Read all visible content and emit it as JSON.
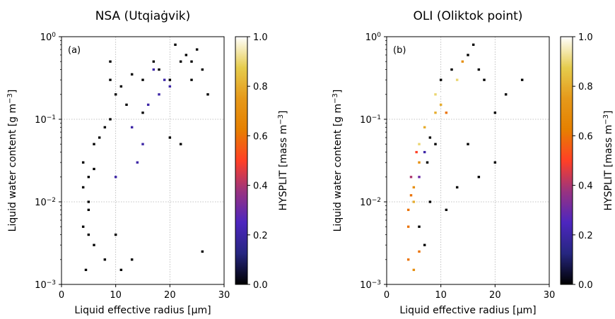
{
  "chart_data": [
    {
      "type": "heatmap",
      "title": "NSA (Utqiaġvik)",
      "panel_label": "(a)",
      "xlabel": "Liquid effective radius [µm]",
      "ylabel": "Liquid water content [g m",
      "ylabel_superscript": "−3",
      "ylabel_tail": "]",
      "xlim": [
        0,
        30
      ],
      "ylim": [
        0.001,
        1
      ],
      "yscale": "log",
      "x_ticks": [
        0,
        10,
        20,
        30
      ],
      "x_tick_labels": [
        "0",
        "10",
        "20",
        "30"
      ],
      "y_ticks": [
        0.001,
        0.01,
        0.1,
        1
      ],
      "y_tick_labels": [
        {
          "base": "10",
          "exp": "−3"
        },
        {
          "base": "10",
          "exp": "−2"
        },
        {
          "base": "10",
          "exp": "−1"
        },
        {
          "base": "10",
          "exp": "0"
        }
      ],
      "grid": true,
      "colorbar": {
        "label": "HYSPLIT [mass m",
        "label_superscript": "−3",
        "label_tail": "]",
        "range": [
          0,
          1
        ],
        "ticks": [
          0,
          0.2,
          0.4,
          0.6,
          0.8,
          1.0
        ],
        "tick_labels": [
          "0.0",
          "0.2",
          "0.4",
          "0.6",
          "0.8",
          "1.0"
        ],
        "colormap": "CMRmap"
      },
      "cell_size": {
        "dx": 0.45,
        "dlog10y": 0.028
      },
      "cells": [
        [
          5,
          0.02,
          0
        ],
        [
          5,
          0.01,
          0
        ],
        [
          5,
          0.004,
          0
        ],
        [
          4,
          0.03,
          0
        ],
        [
          4,
          0.015,
          0
        ],
        [
          4,
          0.005,
          0
        ],
        [
          6,
          0.05,
          0
        ],
        [
          6,
          0.025,
          0
        ],
        [
          5,
          0.008,
          0
        ],
        [
          6,
          0.003,
          0
        ],
        [
          4.5,
          0.0015,
          0
        ],
        [
          7,
          0.06,
          0
        ],
        [
          8,
          0.08,
          0
        ],
        [
          9,
          0.1,
          0
        ],
        [
          9,
          0.5,
          0
        ],
        [
          9,
          0.3,
          0
        ],
        [
          10,
          0.2,
          0
        ],
        [
          11,
          0.25,
          0
        ],
        [
          12,
          0.15,
          0
        ],
        [
          13,
          0.35,
          0
        ],
        [
          15,
          0.12,
          0
        ],
        [
          15,
          0.3,
          0
        ],
        [
          17,
          0.5,
          0
        ],
        [
          18,
          0.4,
          0
        ],
        [
          20,
          0.3,
          0
        ],
        [
          22,
          0.5,
          0
        ],
        [
          23,
          0.6,
          0
        ],
        [
          24,
          0.5,
          0
        ],
        [
          25,
          0.7,
          0
        ],
        [
          26,
          0.4,
          0
        ],
        [
          21,
          0.8,
          0
        ],
        [
          20,
          0.06,
          0
        ],
        [
          22,
          0.05,
          0
        ],
        [
          24,
          0.3,
          0
        ],
        [
          27,
          0.2,
          0
        ],
        [
          18,
          0.2,
          0.2
        ],
        [
          19,
          0.3,
          0.2
        ],
        [
          20,
          0.25,
          0.2
        ],
        [
          16,
          0.15,
          0.2
        ],
        [
          17,
          0.4,
          0.2
        ],
        [
          15,
          0.05,
          0.2
        ],
        [
          14,
          0.03,
          0.2
        ],
        [
          10,
          0.02,
          0.2
        ],
        [
          13,
          0.08,
          0.2
        ],
        [
          10,
          0.004,
          0
        ],
        [
          13,
          0.002,
          0
        ],
        [
          26,
          0.0025,
          0
        ],
        [
          8,
          0.002,
          0
        ],
        [
          11,
          0.0015,
          0
        ]
      ]
    },
    {
      "type": "heatmap",
      "title": "OLI (Oliktok point)",
      "panel_label": "(b)",
      "xlabel": "Liquid effective radius [µm]",
      "ylabel": "Liquid water content [g m",
      "ylabel_superscript": "−3",
      "ylabel_tail": "]",
      "xlim": [
        0,
        30
      ],
      "ylim": [
        0.001,
        1
      ],
      "yscale": "log",
      "x_ticks": [
        0,
        10,
        20,
        30
      ],
      "x_tick_labels": [
        "0",
        "10",
        "20",
        "30"
      ],
      "y_ticks": [
        0.001,
        0.01,
        0.1,
        1
      ],
      "y_tick_labels": [
        {
          "base": "10",
          "exp": "−3"
        },
        {
          "base": "10",
          "exp": "−2"
        },
        {
          "base": "10",
          "exp": "−1"
        },
        {
          "base": "10",
          "exp": "0"
        }
      ],
      "grid": true,
      "colorbar": {
        "label": "HYSPLIT [mass m",
        "label_superscript": "−3",
        "label_tail": "]",
        "range": [
          0,
          1
        ],
        "ticks": [
          0,
          0.2,
          0.4,
          0.6,
          0.8,
          1.0
        ],
        "tick_labels": [
          "0.0",
          "0.2",
          "0.4",
          "0.6",
          "0.8",
          "1.0"
        ],
        "colormap": "CMRmap"
      },
      "cell_size": {
        "dx": 0.45,
        "dlog10y": 0.028
      },
      "cells": [
        [
          4,
          0.008,
          0.6
        ],
        [
          4,
          0.005,
          0.6
        ],
        [
          4,
          0.002,
          0.6
        ],
        [
          5,
          0.015,
          0.7
        ],
        [
          4.5,
          0.02,
          0.4
        ],
        [
          5,
          0.03,
          1
        ],
        [
          5,
          0.01,
          0.8
        ],
        [
          6,
          0.05,
          0.9
        ],
        [
          6,
          0.03,
          0.7
        ],
        [
          7,
          0.08,
          0.8
        ],
        [
          8,
          0.1,
          1
        ],
        [
          9,
          0.2,
          0.9
        ],
        [
          10,
          0.15,
          0.8
        ],
        [
          11,
          0.12,
          0.6
        ],
        [
          6,
          0.02,
          0.3
        ],
        [
          7,
          0.04,
          0.2
        ],
        [
          8,
          0.06,
          0
        ],
        [
          9,
          0.05,
          0
        ],
        [
          10,
          0.3,
          0
        ],
        [
          12,
          0.4,
          0
        ],
        [
          13,
          0.3,
          0.9
        ],
        [
          14,
          0.5,
          0.7
        ],
        [
          15,
          0.6,
          0
        ],
        [
          16,
          0.8,
          0
        ],
        [
          17,
          0.4,
          0
        ],
        [
          18,
          0.3,
          0
        ],
        [
          20,
          0.12,
          0
        ],
        [
          22,
          0.2,
          0
        ],
        [
          25,
          0.3,
          0
        ],
        [
          15,
          0.05,
          0
        ],
        [
          17,
          0.02,
          0
        ],
        [
          20,
          0.03,
          0
        ],
        [
          13,
          0.015,
          0
        ],
        [
          11,
          0.008,
          0
        ],
        [
          8,
          0.01,
          0
        ],
        [
          7,
          0.003,
          0
        ],
        [
          6,
          0.005,
          0
        ],
        [
          5,
          0.0015,
          0.7
        ],
        [
          6,
          0.0025,
          0.6
        ],
        [
          4.5,
          0.012,
          0.6
        ],
        [
          5.5,
          0.04,
          0.5
        ],
        [
          7.5,
          0.03,
          0
        ],
        [
          9,
          0.12,
          0.8
        ],
        [
          10,
          0.2,
          1
        ]
      ]
    }
  ]
}
